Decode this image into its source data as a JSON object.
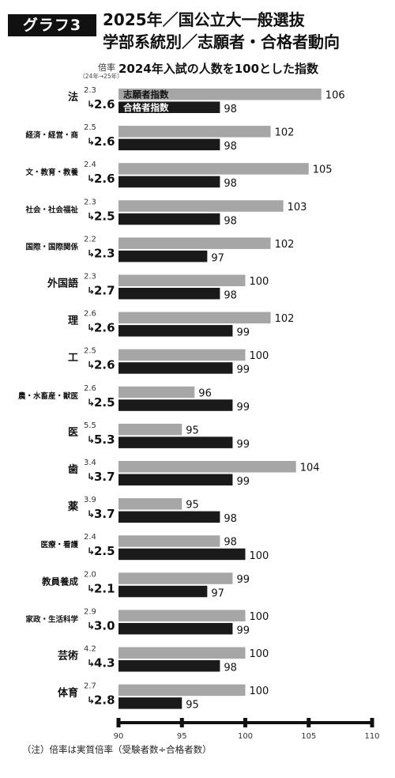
{
  "header": {
    "badge": "グラフ3",
    "title_line1": "2025年／国公立大一般選抜",
    "title_line2": "学部系統別／志願者・合格者動向",
    "subtitle": "2024年入試の人数を100とした指数",
    "ratio_label": "倍率",
    "ratio_sublabel": "（24年→25年）",
    "note": "（注）倍率は実質倍率（受験者数÷合格者数）"
  },
  "colors": {
    "applicants": "#a6a6a6",
    "passers": "#1a1a1a",
    "axis": "#111111"
  },
  "chart_data": {
    "type": "bar",
    "orientation": "horizontal",
    "xlim": [
      90,
      110
    ],
    "xticks": [
      "90",
      "95",
      "100",
      "105",
      "110"
    ],
    "legend": {
      "applicants": "志願者指数",
      "passers": "合格者指数",
      "placement": "inside first category"
    },
    "categories": [
      "法",
      "経済・経営・商",
      "文・教育・教養",
      "社会・社会福祉",
      "国際・国際関係",
      "外国語",
      "理",
      "工",
      "農・水畜産・獣医",
      "医",
      "歯",
      "薬",
      "医療・看護",
      "教員養成",
      "家政・生活科学",
      "芸術",
      "体育"
    ],
    "ratio_2024": [
      "2.3",
      "2.5",
      "2.4",
      "2.3",
      "2.2",
      "2.3",
      "2.6",
      "2.5",
      "2.6",
      "5.5",
      "3.4",
      "3.9",
      "2.4",
      "2.0",
      "2.9",
      "4.2",
      "2.7"
    ],
    "ratio_2025": [
      "2.6",
      "2.6",
      "2.6",
      "2.5",
      "2.3",
      "2.7",
      "2.6",
      "2.6",
      "2.5",
      "5.3",
      "3.7",
      "3.7",
      "2.5",
      "2.1",
      "3.0",
      "4.3",
      "2.8"
    ],
    "series": [
      {
        "name": "志願者指数",
        "values": [
          106,
          102,
          105,
          103,
          102,
          100,
          102,
          100,
          96,
          95,
          104,
          95,
          98,
          99,
          100,
          100,
          100
        ]
      },
      {
        "name": "合格者指数",
        "values": [
          98,
          98,
          98,
          98,
          97,
          98,
          99,
          99,
          99,
          99,
          99,
          98,
          100,
          97,
          99,
          98,
          95
        ]
      }
    ]
  }
}
